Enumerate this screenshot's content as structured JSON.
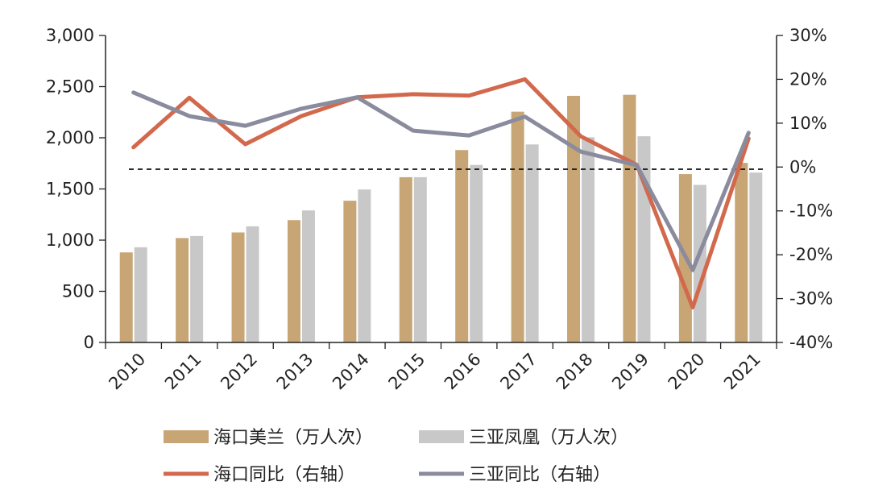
{
  "chart_data": {
    "type": "bar+line",
    "categories": [
      "2010",
      "2011",
      "2012",
      "2013",
      "2014",
      "2015",
      "2016",
      "2017",
      "2018",
      "2019",
      "2020",
      "2021"
    ],
    "bar_series": [
      {
        "name": "海口美兰（万人次）",
        "color": "#C8A574",
        "values": [
          880,
          1020,
          1075,
          1195,
          1385,
          1615,
          1880,
          2255,
          2410,
          2420,
          1645,
          1755
        ]
      },
      {
        "name": "三亚凤凰（万人次）",
        "color": "#C8C8C8",
        "values": [
          930,
          1040,
          1135,
          1290,
          1495,
          1615,
          1735,
          1935,
          2005,
          2015,
          1540,
          1660
        ]
      }
    ],
    "line_series": [
      {
        "name": "海口同比（右轴）",
        "color": "#D2694C",
        "values": [
          4.5,
          15.8,
          5.2,
          11.6,
          15.9,
          16.6,
          16.3,
          20.0,
          7.0,
          0.5,
          -32.0,
          6.5
        ]
      },
      {
        "name": "三亚同比（右轴）",
        "color": "#8A8C9E",
        "values": [
          17.0,
          11.6,
          9.4,
          13.3,
          15.9,
          8.3,
          7.2,
          11.5,
          3.5,
          0.4,
          -23.5,
          7.8
        ]
      }
    ],
    "reference_line": {
      "axis": "right",
      "value": -0.5,
      "style": "dashed"
    },
    "left_axis": {
      "ylim": [
        0,
        3000
      ],
      "ticks": [
        "0",
        "500",
        "1,000",
        "1,500",
        "2,000",
        "2,500",
        "3,000"
      ]
    },
    "right_axis": {
      "ylim": [
        -40,
        30
      ],
      "ticks": [
        "-40%",
        "-30%",
        "-20%",
        "-10%",
        "0%",
        "10%",
        "20%",
        "30%"
      ]
    },
    "legend_position": "bottom"
  }
}
